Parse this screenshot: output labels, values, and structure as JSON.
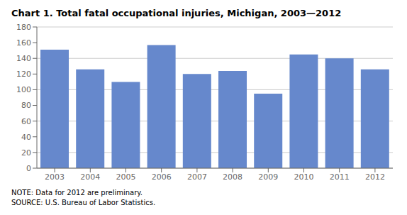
{
  "chart_data": {
    "type": "bar",
    "title": "Chart 1. Total fatal occupational injuries, Michigan, 2003—2012",
    "categories": [
      "2003",
      "2004",
      "2005",
      "2006",
      "2007",
      "2008",
      "2009",
      "2010",
      "2011",
      "2012"
    ],
    "values": [
      151,
      126,
      110,
      157,
      120,
      124,
      95,
      145,
      140,
      126
    ],
    "color": "#6688cc",
    "ylim": [
      0,
      180
    ],
    "yticks": [
      0,
      20,
      40,
      60,
      80,
      100,
      120,
      140,
      160,
      180
    ],
    "grid": true,
    "annotations": [
      "NOTE: Data for 2012 are preliminary.",
      "SOURCE: U.S. Bureau of Labor Statistics."
    ]
  }
}
